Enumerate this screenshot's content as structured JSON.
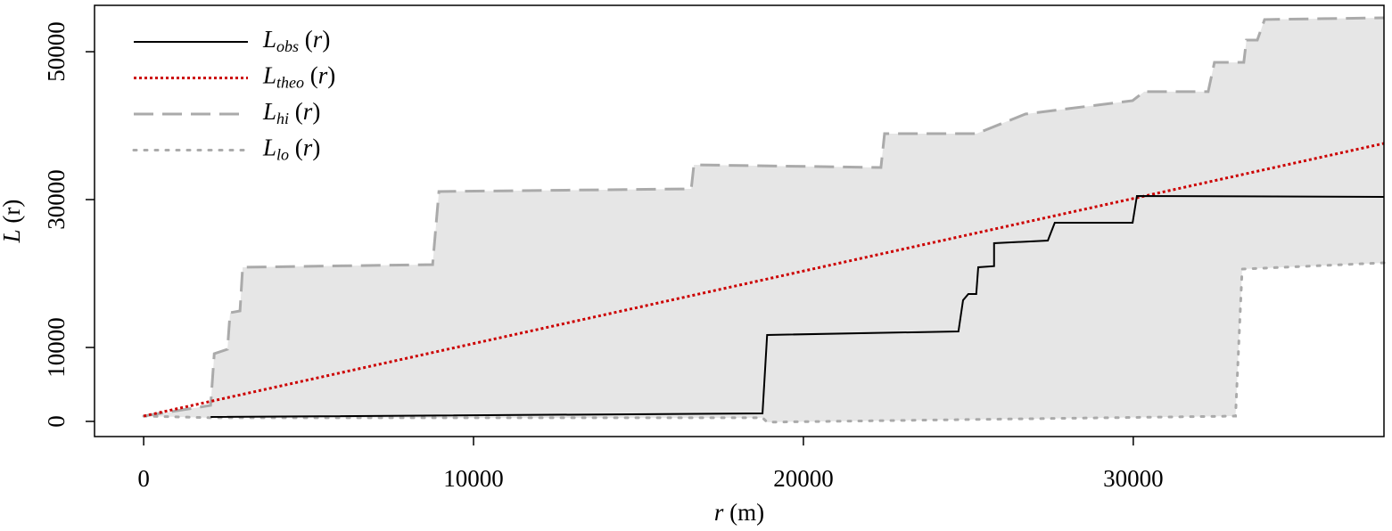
{
  "chart_data": {
    "type": "line",
    "xlabel": "r (m)",
    "ylabel": "L (r)",
    "xlim": [
      -1490,
      37600
    ],
    "ylim": [
      -2050,
      56270
    ],
    "xticks": [
      0,
      10000,
      20000,
      30000
    ],
    "yticks": [
      0,
      10000,
      30000,
      50000
    ],
    "legend": "top-left",
    "envelope_color": "#e6e6e6",
    "series": [
      {
        "name": "Lobs (r)",
        "color": "#000000",
        "style": "solid",
        "x": [
          2030,
          18760,
          18900,
          24700,
          24840,
          25000,
          25240,
          25300,
          25780,
          25780,
          27410,
          27620,
          29980,
          30110,
          37600
        ],
        "values": [
          600,
          1080,
          11690,
          12170,
          16390,
          17230,
          17230,
          20850,
          21000,
          24100,
          24460,
          26870,
          26870,
          30490,
          30370
        ]
      },
      {
        "name": "Ltheo (r)",
        "color": "#cc0000",
        "style": "dotted",
        "x": [
          0,
          37600
        ],
        "values": [
          720,
          37600
        ]
      },
      {
        "name": "Lhi (r)",
        "color": "#aaaaaa",
        "style": "dashed",
        "x": [
          0,
          2030,
          2140,
          2540,
          2620,
          2920,
          3000,
          8760,
          8950,
          16600,
          16680,
          22350,
          22460,
          25250,
          26730,
          29980,
          30330,
          32270,
          32460,
          33350,
          33430,
          33760,
          33980,
          37600
        ],
        "values": [
          720,
          2170,
          9160,
          9760,
          14700,
          14940,
          20850,
          21210,
          31090,
          31450,
          34700,
          34340,
          38920,
          38920,
          41570,
          43380,
          44590,
          44590,
          48560,
          48560,
          51570,
          51570,
          54350,
          54590
        ]
      },
      {
        "name": "Llo (r)",
        "color": "#aaaaaa",
        "style": "dotdash",
        "x": [
          0,
          2030,
          18760,
          18900,
          33100,
          33300,
          37600
        ],
        "values": [
          720,
          500,
          500,
          -100,
          720,
          20600,
          21450
        ]
      }
    ]
  }
}
